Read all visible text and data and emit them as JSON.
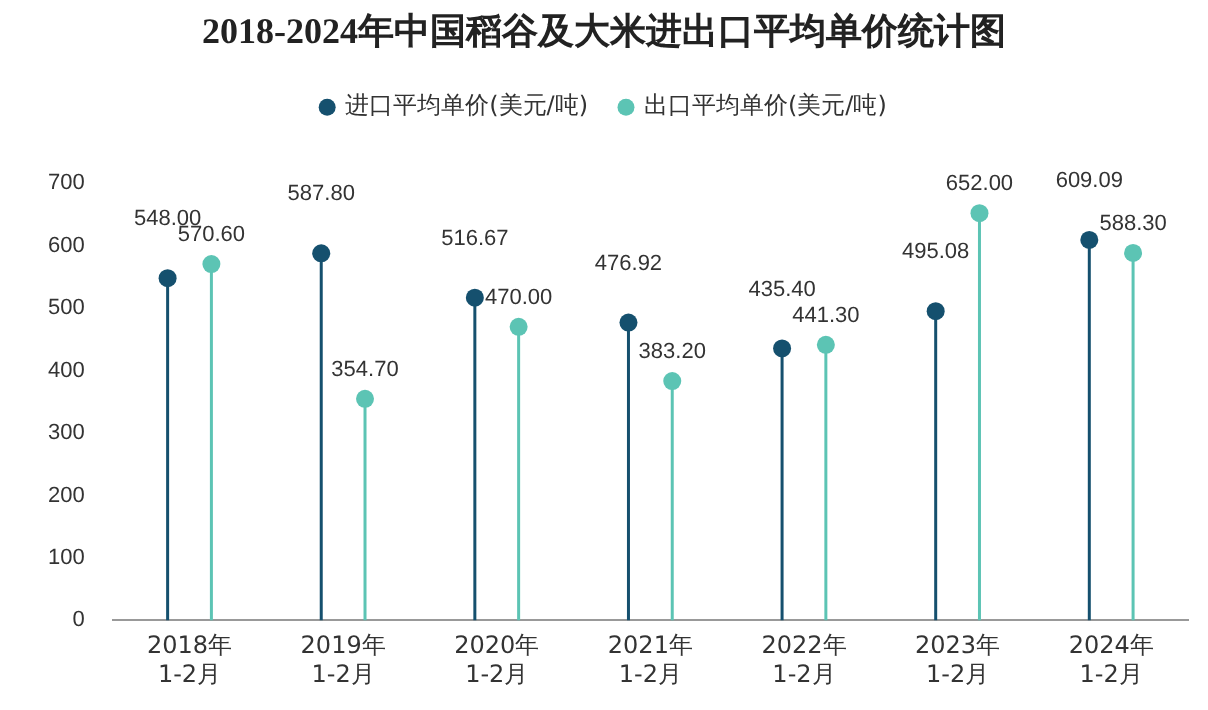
{
  "chart_data": {
    "type": "lollipop",
    "title": "2018-2024年中国稻谷及大米进出口平均单价统计图",
    "categories": [
      "2018年\n1-2月",
      "2019年\n1-2月",
      "2020年\n1-2月",
      "2021年\n1-2月",
      "2022年\n1-2月",
      "2023年\n1-2月",
      "2024年\n1-2月"
    ],
    "series": [
      {
        "name": "进口平均单价(美元/吨)",
        "color": "#15506e",
        "values": [
          548,
          587.8,
          516.67,
          476.92,
          435.4,
          495.08,
          609.09
        ],
        "value_labels": [
          "548.00",
          "587.80",
          "516.67",
          "476.92",
          "435.40",
          "495.08",
          "609.09"
        ]
      },
      {
        "name": "出口平均单价(美元/吨)",
        "color": "#5cc4b4",
        "values": [
          570.6,
          354.7,
          470,
          383.2,
          441.3,
          652,
          588.3
        ],
        "value_labels": [
          "570.60",
          "354.70",
          "470.00",
          "383.20",
          "441.30",
          "652.00",
          "588.30"
        ]
      }
    ],
    "ylim": [
      0,
      700
    ],
    "yticks": [
      0,
      100,
      200,
      300,
      400,
      500,
      600,
      700
    ],
    "grid": false,
    "legend": "top",
    "marker": "circle"
  }
}
